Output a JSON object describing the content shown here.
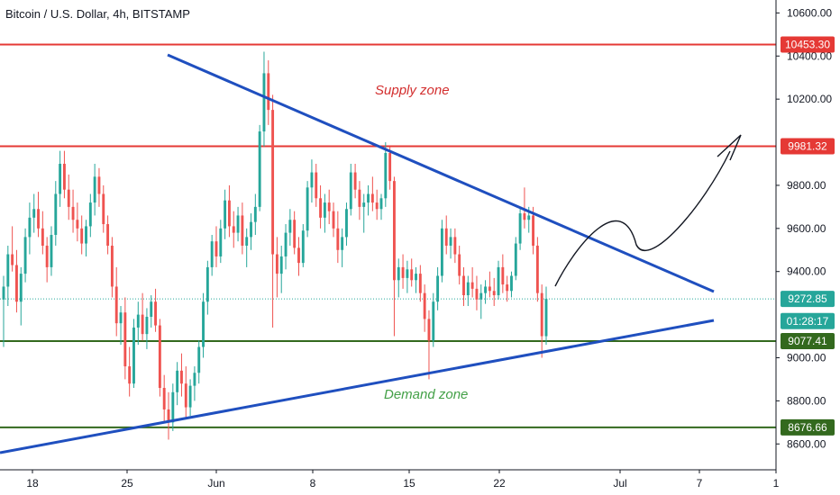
{
  "header": {
    "title": "Bitcoin / U.S. Dollar, 4h, BITSTAMP"
  },
  "chart_data": {
    "type": "candlestick",
    "y_axis": {
      "range": [
        8480,
        10660
      ],
      "ticks": [
        "10600.00",
        "10400.00",
        "10200.00",
        "9800.00",
        "9600.00",
        "9400.00",
        "9000.00",
        "8800.00",
        "8600.00"
      ]
    },
    "x_axis": {
      "ticks": [
        "18",
        "25",
        "Jun",
        "8",
        "15",
        "22",
        "Jul",
        "7",
        "1"
      ]
    },
    "price_tags": [
      {
        "label": "10453.30",
        "value": 10453.3,
        "color": "#e53935"
      },
      {
        "label": "9981.32",
        "value": 9981.32,
        "color": "#e53935"
      },
      {
        "label": "9272.85",
        "value": 9272.85,
        "color": "#26a69a"
      },
      {
        "label": "01:28:17",
        "value": 9170,
        "color": "#26a69a"
      },
      {
        "label": "9077.41",
        "value": 9077.41,
        "color": "#33691e"
      },
      {
        "label": "8676.66",
        "value": 8676.66,
        "color": "#33691e"
      }
    ],
    "horizontal_levels": [
      {
        "value": 10453.3,
        "color": "#e53935"
      },
      {
        "value": 9981.32,
        "color": "#e53935"
      },
      {
        "value": 9077.41,
        "color": "#33691e"
      },
      {
        "value": 8676.66,
        "color": "#33691e"
      }
    ],
    "current_price": 9272.85,
    "annotations": [
      {
        "text": "Supply zone",
        "color": "#d32f2f"
      },
      {
        "text": "Demand zone",
        "color": "#43a047"
      }
    ],
    "colors": {
      "up": "#26a69a",
      "down": "#ef5350",
      "trendline": "#1f4fbf",
      "arrow": "#131722"
    },
    "candles": [
      [
        9270,
        9380,
        9050,
        9330
      ],
      [
        9330,
        9520,
        9240,
        9480
      ],
      [
        9480,
        9610,
        9400,
        9430
      ],
      [
        9430,
        9500,
        9210,
        9260
      ],
      [
        9260,
        9420,
        9150,
        9390
      ],
      [
        9390,
        9600,
        9350,
        9560
      ],
      [
        9560,
        9720,
        9480,
        9650
      ],
      [
        9650,
        9760,
        9580,
        9690
      ],
      [
        9690,
        9770,
        9560,
        9600
      ],
      [
        9600,
        9680,
        9480,
        9520
      ],
      [
        9520,
        9560,
        9350,
        9420
      ],
      [
        9420,
        9610,
        9380,
        9570
      ],
      [
        9570,
        9820,
        9520,
        9760
      ],
      [
        9760,
        9960,
        9700,
        9900
      ],
      [
        9900,
        9960,
        9740,
        9780
      ],
      [
        9780,
        9850,
        9640,
        9700
      ],
      [
        9700,
        9780,
        9580,
        9640
      ],
      [
        9640,
        9720,
        9540,
        9600
      ],
      [
        9600,
        9660,
        9480,
        9530
      ],
      [
        9530,
        9640,
        9470,
        9610
      ],
      [
        9610,
        9760,
        9560,
        9720
      ],
      [
        9720,
        9900,
        9660,
        9840
      ],
      [
        9840,
        9880,
        9700,
        9760
      ],
      [
        9760,
        9800,
        9580,
        9620
      ],
      [
        9620,
        9660,
        9480,
        9520
      ],
      [
        9520,
        9560,
        9280,
        9330
      ],
      [
        9330,
        9420,
        9100,
        9160
      ],
      [
        9160,
        9240,
        9060,
        9210
      ],
      [
        9210,
        9280,
        8900,
        8960
      ],
      [
        8960,
        9050,
        8820,
        8880
      ],
      [
        8880,
        9180,
        8860,
        9140
      ],
      [
        9140,
        9260,
        9060,
        9200
      ],
      [
        9200,
        9300,
        9080,
        9110
      ],
      [
        9110,
        9230,
        9040,
        9190
      ],
      [
        9190,
        9290,
        9140,
        9260
      ],
      [
        9260,
        9320,
        9120,
        9150
      ],
      [
        9150,
        9180,
        8820,
        8860
      ],
      [
        8860,
        8920,
        8700,
        8760
      ],
      [
        8760,
        8840,
        8620,
        8700
      ],
      [
        8700,
        8880,
        8660,
        8840
      ],
      [
        8840,
        8980,
        8780,
        8940
      ],
      [
        8940,
        9020,
        8820,
        8880
      ],
      [
        8880,
        8960,
        8720,
        8770
      ],
      [
        8770,
        8900,
        8730,
        8870
      ],
      [
        8870,
        8960,
        8800,
        8930
      ],
      [
        8930,
        9080,
        8880,
        9050
      ],
      [
        9050,
        9300,
        9000,
        9260
      ],
      [
        9260,
        9450,
        9200,
        9420
      ],
      [
        9420,
        9570,
        9380,
        9540
      ],
      [
        9540,
        9610,
        9420,
        9470
      ],
      [
        9470,
        9640,
        9440,
        9600
      ],
      [
        9600,
        9780,
        9550,
        9730
      ],
      [
        9730,
        9800,
        9560,
        9610
      ],
      [
        9610,
        9680,
        9510,
        9580
      ],
      [
        9580,
        9700,
        9540,
        9660
      ],
      [
        9660,
        9720,
        9480,
        9520
      ],
      [
        9520,
        9600,
        9420,
        9560
      ],
      [
        9560,
        9670,
        9500,
        9630
      ],
      [
        9630,
        9760,
        9570,
        9700
      ],
      [
        9700,
        10080,
        9680,
        10050
      ],
      [
        10050,
        10420,
        9980,
        10320
      ],
      [
        10320,
        10380,
        10080,
        10150
      ],
      [
        10150,
        10220,
        9140,
        9480
      ],
      [
        9480,
        9560,
        9280,
        9390
      ],
      [
        9390,
        9520,
        9300,
        9470
      ],
      [
        9470,
        9620,
        9410,
        9580
      ],
      [
        9580,
        9690,
        9520,
        9640
      ],
      [
        9640,
        9680,
        9480,
        9510
      ],
      [
        9510,
        9560,
        9380,
        9440
      ],
      [
        9440,
        9620,
        9420,
        9590
      ],
      [
        9590,
        9820,
        9560,
        9790
      ],
      [
        9790,
        9920,
        9720,
        9860
      ],
      [
        9860,
        9900,
        9700,
        9740
      ],
      [
        9740,
        9800,
        9600,
        9650
      ],
      [
        9650,
        9760,
        9580,
        9720
      ],
      [
        9720,
        9780,
        9620,
        9680
      ],
      [
        9680,
        9720,
        9560,
        9600
      ],
      [
        9600,
        9680,
        9440,
        9500
      ],
      [
        9500,
        9600,
        9420,
        9560
      ],
      [
        9560,
        9720,
        9520,
        9690
      ],
      [
        9690,
        9900,
        9660,
        9860
      ],
      [
        9860,
        9900,
        9740,
        9780
      ],
      [
        9780,
        9820,
        9640,
        9700
      ],
      [
        9700,
        9760,
        9580,
        9720
      ],
      [
        9720,
        9800,
        9660,
        9760
      ],
      [
        9760,
        9840,
        9680,
        9720
      ],
      [
        9720,
        9780,
        9640,
        9690
      ],
      [
        9690,
        9760,
        9640,
        9740
      ],
      [
        9740,
        10000,
        9700,
        9950
      ],
      [
        9950,
        9980,
        9780,
        9820
      ],
      [
        9820,
        9840,
        9100,
        9360
      ],
      [
        9360,
        9460,
        9280,
        9420
      ],
      [
        9420,
        9480,
        9320,
        9370
      ],
      [
        9370,
        9450,
        9300,
        9410
      ],
      [
        9410,
        9460,
        9330,
        9360
      ],
      [
        9360,
        9420,
        9300,
        9390
      ],
      [
        9390,
        9430,
        9260,
        9300
      ],
      [
        9300,
        9340,
        9120,
        9180
      ],
      [
        9180,
        9220,
        8900,
        9080
      ],
      [
        9080,
        9300,
        9050,
        9260
      ],
      [
        9260,
        9420,
        9220,
        9380
      ],
      [
        9380,
        9640,
        9350,
        9600
      ],
      [
        9600,
        9660,
        9480,
        9520
      ],
      [
        9520,
        9600,
        9460,
        9560
      ],
      [
        9560,
        9600,
        9440,
        9480
      ],
      [
        9480,
        9520,
        9340,
        9380
      ],
      [
        9380,
        9420,
        9240,
        9290
      ],
      [
        9290,
        9380,
        9240,
        9350
      ],
      [
        9350,
        9420,
        9280,
        9320
      ],
      [
        9320,
        9380,
        9220,
        9270
      ],
      [
        9270,
        9340,
        9180,
        9300
      ],
      [
        9300,
        9360,
        9250,
        9330
      ],
      [
        9330,
        9400,
        9280,
        9310
      ],
      [
        9310,
        9370,
        9240,
        9290
      ],
      [
        9290,
        9450,
        9270,
        9420
      ],
      [
        9420,
        9480,
        9300,
        9340
      ],
      [
        9340,
        9380,
        9260,
        9310
      ],
      [
        9310,
        9400,
        9280,
        9380
      ],
      [
        9380,
        9560,
        9360,
        9530
      ],
      [
        9530,
        9700,
        9500,
        9670
      ],
      [
        9670,
        9790,
        9600,
        9640
      ],
      [
        9640,
        9700,
        9580,
        9660
      ],
      [
        9660,
        9700,
        9480,
        9520
      ],
      [
        9520,
        9560,
        9260,
        9300
      ],
      [
        9300,
        9340,
        9000,
        9100
      ],
      [
        9100,
        9330,
        9060,
        9272.85
      ]
    ]
  }
}
